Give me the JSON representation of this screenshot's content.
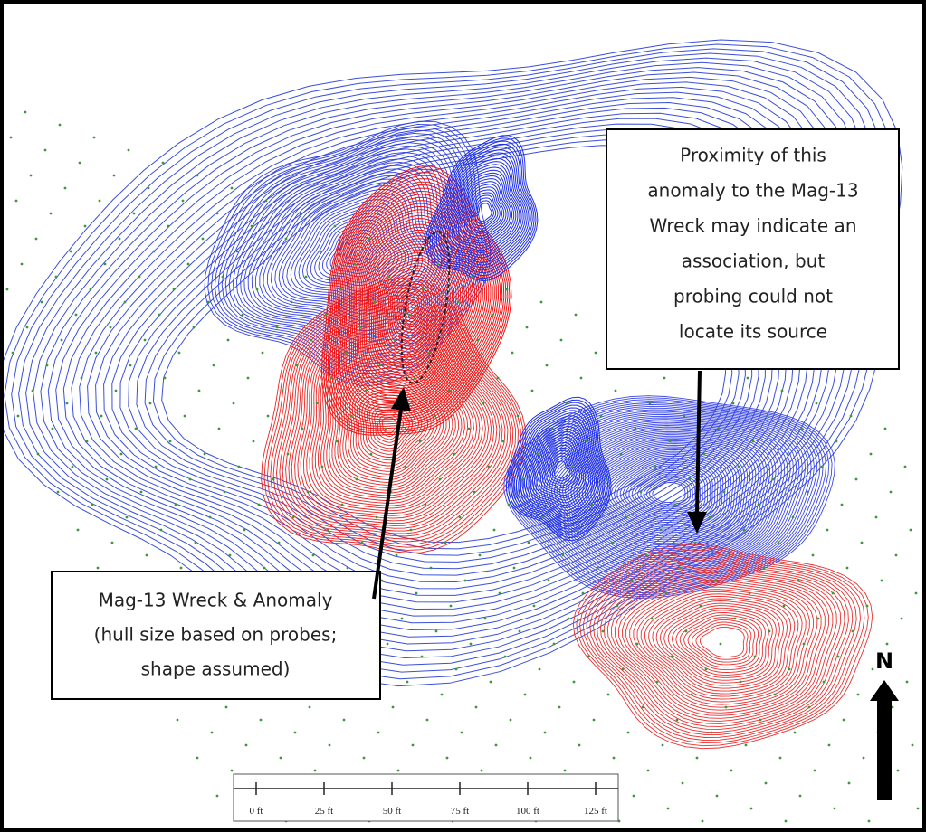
{
  "callouts": [
    {
      "lines": [
        "Proximity of this",
        "anomaly to the Mag-13",
        "Wreck may indicate an",
        "association, but",
        "probing could not",
        "locate its source"
      ]
    },
    {
      "lines": [
        "Mag-13 Wreck & Anomaly",
        "(hull size based on probes;",
        "shape assumed)"
      ]
    }
  ],
  "north_label": "N",
  "scale_bar": {
    "labels": [
      "0 ft",
      "25 ft",
      "50 ft",
      "75 ft",
      "100 ft",
      "125 ft"
    ]
  }
}
